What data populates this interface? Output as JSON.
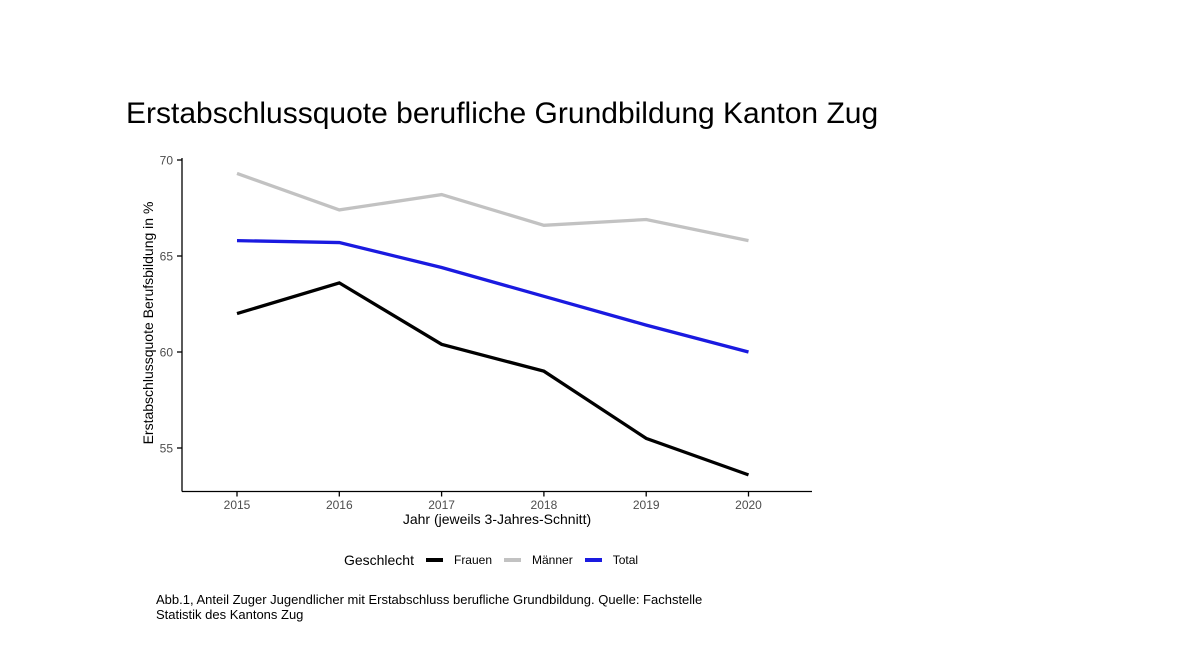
{
  "title": "Erstabschlussquote berufliche Grundbildung Kanton Zug",
  "chart_data": {
    "type": "line",
    "x": [
      "2015",
      "2016",
      "2017",
      "2018",
      "2019",
      "2020"
    ],
    "series": [
      {
        "name": "Frauen",
        "color": "#000000",
        "values": [
          62.0,
          63.6,
          60.4,
          59.0,
          55.5,
          53.6
        ]
      },
      {
        "name": "Männer",
        "color": "#c2c2c2",
        "values": [
          69.3,
          67.4,
          68.2,
          66.6,
          66.9,
          65.8
        ]
      },
      {
        "name": "Total",
        "color": "#1a1ae0",
        "values": [
          65.8,
          65.7,
          64.4,
          62.9,
          61.4,
          60.0
        ]
      }
    ],
    "title": "Erstabschlussquote berufliche Grundbildung Kanton Zug",
    "xlabel": "Jahr (jeweils 3-Jahres-Schnitt)",
    "ylabel": "Erstabschlussquote Berufsbildung in %",
    "ylim": [
      53.5,
      70
    ],
    "yticks": [
      55,
      60,
      65,
      70
    ],
    "legend_title": "Geschlecht",
    "legend_position": "bottom",
    "grid": false,
    "tick_label_color": "#4d4d4d",
    "axis_color": "#000000"
  },
  "caption": {
    "line1": "Abb.1, Anteil Zuger Jugendlicher mit Erstabschluss berufliche Grundbildung. Quelle: Fachstelle",
    "line2": "Statistik des Kantons Zug"
  }
}
